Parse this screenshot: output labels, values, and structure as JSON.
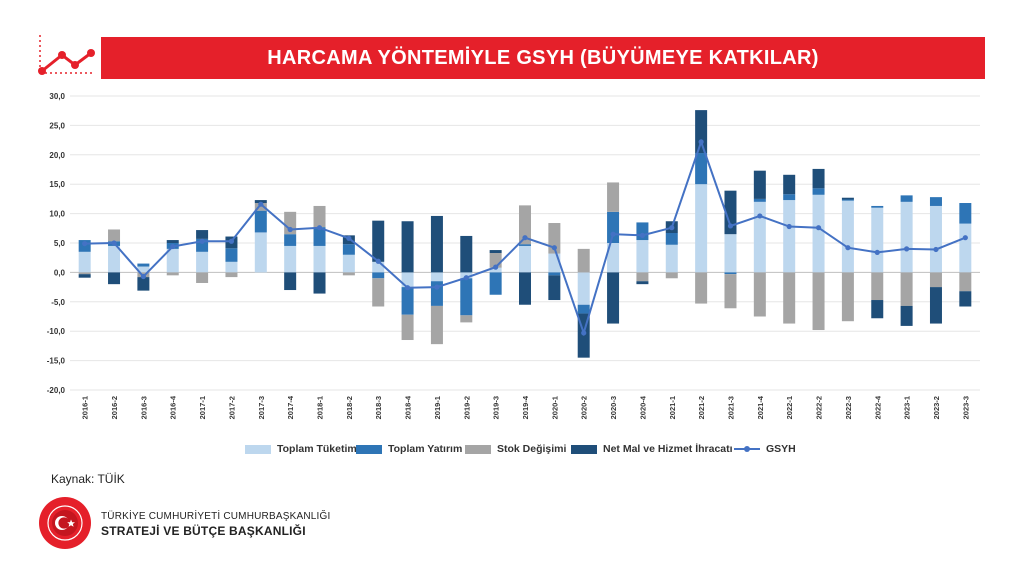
{
  "header": {
    "title": "HARCAMA YÖNTEMİYLE GSYH (BÜYÜMEYE KATKILAR)"
  },
  "source": "Kaynak: TÜİK",
  "org": {
    "line1": "TÜRKİYE CUMHURİYETİ CUMHURBAŞKANLIĞI",
    "line2": "STRATEJİ VE BÜTÇE BAŞKANLIĞI"
  },
  "seal_text": "T.C. CUMHURBAŞKANLIĞI STRATEJİ VE BÜTÇE BAŞKANLIĞI",
  "colors": {
    "brand_red": "#e5202a",
    "tuketim": "#bdd7ee",
    "yatirim": "#2e75b6",
    "stok": "#a5a5a5",
    "ihracat": "#1f4e79",
    "gsyh": "#4472c4"
  },
  "chart_data": {
    "type": "bar",
    "stacked": true,
    "title": "HARCAMA YÖNTEMİYLE GSYH (BÜYÜMEYE KATKILAR)",
    "categories": [
      "2016-1",
      "2016-2",
      "2016-3",
      "2016-4",
      "2017-1",
      "2017-2",
      "2017-3",
      "2017-4",
      "2018-1",
      "2018-2",
      "2018-3",
      "2018-4",
      "2019-1",
      "2019-2",
      "2019-3",
      "2019-4",
      "2020-1",
      "2020-2",
      "2020-3",
      "2020-4",
      "2021-1",
      "2021-2",
      "2021-3",
      "2021-4",
      "2022-1",
      "2022-2",
      "2022-3",
      "2022-4",
      "2023-1",
      "2023-2",
      "2023-3"
    ],
    "ylim": [
      -20,
      30
    ],
    "yticks": [
      "-20,0",
      "-15,0",
      "-10,0",
      "-5,0",
      "0,0",
      "5,0",
      "10,0",
      "15,0",
      "20,0",
      "25,0",
      "30,0"
    ],
    "grid": true,
    "legend_position": "bottom",
    "series": [
      {
        "name": "Toplam Tüketim",
        "type": "bar",
        "values": [
          3.5,
          4.5,
          1.0,
          4.0,
          3.5,
          1.8,
          6.8,
          4.5,
          4.5,
          3.0,
          1.8,
          -2.5,
          -1.5,
          -1.0,
          0.8,
          4.5,
          3.2,
          -5.5,
          5.0,
          5.5,
          4.7,
          15.0,
          6.5,
          12.0,
          12.3,
          13.2,
          12.2,
          11.0,
          12.0,
          11.3,
          8.3
        ]
      },
      {
        "name": "Toplam Yatırım",
        "type": "bar",
        "values": [
          2.0,
          0.8,
          0.5,
          1.0,
          2.2,
          2.3,
          3.7,
          2.0,
          3.2,
          1.8,
          -1.0,
          -4.7,
          -4.2,
          -6.3,
          -3.8,
          0.3,
          -0.5,
          -1.5,
          5.3,
          3.0,
          2.0,
          5.3,
          -0.3,
          0.5,
          1.0,
          1.1,
          0.2,
          0.3,
          1.1,
          1.5,
          3.5
        ]
      },
      {
        "name": "Stok Değişimi",
        "type": "bar",
        "values": [
          -0.3,
          2.0,
          -0.8,
          -0.5,
          -1.8,
          -0.8,
          1.3,
          3.8,
          3.6,
          -0.5,
          -4.8,
          -4.3,
          -6.5,
          -1.2,
          2.5,
          6.6,
          5.2,
          4.0,
          5.0,
          -1.5,
          -1.0,
          -5.3,
          -5.8,
          -7.5,
          -8.7,
          -9.8,
          -8.3,
          -4.7,
          -5.7,
          -2.5,
          -3.2
        ]
      },
      {
        "name": "Net Mal ve Hizmet İhracatı",
        "type": "bar",
        "values": [
          -0.6,
          -2.0,
          -2.3,
          0.5,
          1.5,
          2.0,
          0.5,
          -3.0,
          -3.6,
          1.5,
          7.0,
          8.7,
          9.6,
          6.2,
          0.5,
          -5.5,
          -4.2,
          -7.5,
          -8.7,
          -0.5,
          2.0,
          7.3,
          7.4,
          4.8,
          3.3,
          3.3,
          0.3,
          -3.1,
          -3.4,
          -6.2,
          -2.6
        ]
      },
      {
        "name": "GSYH",
        "type": "line",
        "values": [
          4.9,
          5.0,
          -0.7,
          4.4,
          5.3,
          5.3,
          11.6,
          7.3,
          7.6,
          5.8,
          1.9,
          -2.6,
          -2.5,
          -0.9,
          0.9,
          5.9,
          4.2,
          -10.3,
          6.5,
          6.3,
          7.6,
          22.2,
          7.9,
          9.6,
          7.8,
          7.6,
          4.2,
          3.4,
          4.0,
          3.9,
          5.9
        ]
      }
    ]
  }
}
